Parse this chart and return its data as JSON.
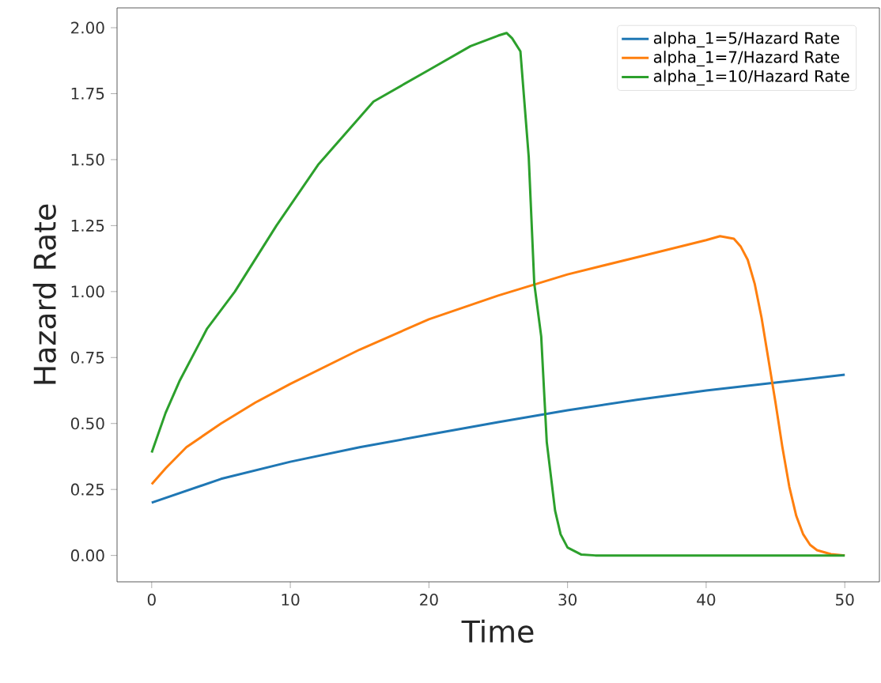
{
  "chart_data": {
    "type": "line",
    "xlabel": "Time",
    "ylabel": "Hazard Rate",
    "xlim": [
      -2.5,
      52.5
    ],
    "ylim": [
      -0.1,
      2.075
    ],
    "xticks": [
      0,
      10,
      20,
      30,
      40,
      50
    ],
    "yticks": [
      {
        "value": 0,
        "label": "0.00"
      },
      {
        "value": 0.25,
        "label": "0.25"
      },
      {
        "value": 0.5,
        "label": "0.50"
      },
      {
        "value": 0.75,
        "label": "0.75"
      },
      {
        "value": 1,
        "label": "1.00"
      },
      {
        "value": 1.25,
        "label": "1.25"
      },
      {
        "value": 1.5,
        "label": "1.50"
      },
      {
        "value": 1.75,
        "label": "1.75"
      },
      {
        "value": 2,
        "label": "2.00"
      }
    ],
    "grid": false,
    "legend": "top right",
    "marker": "none",
    "line_style": "solid",
    "series": [
      {
        "name": "alpha_1=5/Hazard Rate",
        "color": "#1f77b4",
        "x": [
          0,
          5,
          10,
          15,
          20,
          25,
          30,
          35,
          40,
          45,
          50
        ],
        "values": [
          0.2,
          0.29,
          0.355,
          0.41,
          0.458,
          0.505,
          0.55,
          0.59,
          0.625,
          0.655,
          0.685
        ]
      },
      {
        "name": "alpha_1=7/Hazard Rate",
        "color": "#ff7f0e",
        "x": [
          0,
          1,
          2.5,
          5,
          7.5,
          10,
          15,
          20,
          25,
          30,
          35,
          40,
          41,
          42,
          42.5,
          43,
          43.5,
          44,
          44.5,
          45,
          45.5,
          46,
          46.5,
          47,
          47.5,
          48,
          49,
          50
        ],
        "values": [
          0.27,
          0.33,
          0.41,
          0.5,
          0.58,
          0.65,
          0.78,
          0.895,
          0.985,
          1.065,
          1.13,
          1.195,
          1.21,
          1.2,
          1.17,
          1.12,
          1.03,
          0.9,
          0.74,
          0.58,
          0.41,
          0.26,
          0.15,
          0.08,
          0.04,
          0.02,
          0.005,
          0
        ]
      },
      {
        "name": "alpha_1=10/Hazard Rate",
        "color": "#2ca02c",
        "x": [
          0,
          1,
          2,
          4,
          6,
          9,
          12,
          16,
          20,
          23,
          25,
          25.6,
          26,
          26.6,
          27.2,
          27.6,
          28.1,
          28.5,
          29.1,
          29.5,
          30,
          31,
          32,
          40,
          50
        ],
        "values": [
          0.39,
          0.54,
          0.66,
          0.86,
          1.0,
          1.25,
          1.48,
          1.72,
          1.84,
          1.93,
          1.97,
          1.98,
          1.96,
          1.91,
          1.51,
          1.03,
          0.83,
          0.43,
          0.17,
          0.08,
          0.03,
          0.003,
          0,
          0,
          0
        ]
      }
    ]
  }
}
